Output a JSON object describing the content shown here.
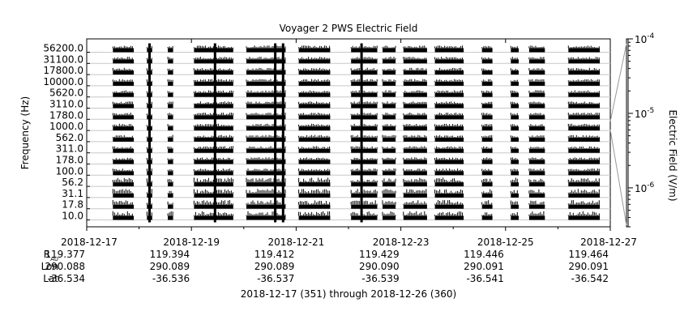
{
  "chart_data": {
    "type": "heatmap",
    "title": "Voyager 2 PWS Electric Field",
    "ylabel": "Frequency (Hz)",
    "colorbar_label": "Electric Field (V/m)",
    "colorbar_ticks": [
      {
        "value": 0.0001,
        "base": "10",
        "exp": "-4"
      },
      {
        "value": 1e-05,
        "base": "10",
        "exp": "-5"
      },
      {
        "value": 1e-06,
        "base": "10",
        "exp": "-6"
      }
    ],
    "colorbar_range": [
      3e-07,
      0.0001
    ],
    "colorbar_scale": "log",
    "colormap": "grayscale",
    "frequency_channels": [
      "56200.0",
      "31100.0",
      "17800.0",
      "10000.0",
      "5620.0",
      "3110.0",
      "1780.0",
      "1000.0",
      "562.0",
      "311.0",
      "178.0",
      "100.0",
      "56.2",
      "31.1",
      "17.8",
      "10.0"
    ],
    "x_range": [
      "2018-12-17",
      "2018-12-27"
    ],
    "x_ticks": [
      "2018-12-17",
      "2018-12-19",
      "2018-12-21",
      "2018-12-23",
      "2018-12-25",
      "2018-12-27"
    ],
    "x_minor_ticks": [
      "2018-12-18",
      "2018-12-20",
      "2018-12-22",
      "2018-12-24",
      "2018-12-26"
    ],
    "observation_windows": [
      {
        "start_day": 0.5,
        "end_day": 0.9
      },
      {
        "start_day": 1.15,
        "end_day": 1.25
      },
      {
        "start_day": 1.55,
        "end_day": 1.65
      },
      {
        "start_day": 2.05,
        "end_day": 2.8
      },
      {
        "start_day": 3.05,
        "end_day": 3.8
      },
      {
        "start_day": 4.05,
        "end_day": 4.65
      },
      {
        "start_day": 5.05,
        "end_day": 5.55
      },
      {
        "start_day": 5.65,
        "end_day": 5.9
      },
      {
        "start_day": 6.05,
        "end_day": 6.5
      },
      {
        "start_day": 6.65,
        "end_day": 7.2
      },
      {
        "start_day": 7.55,
        "end_day": 7.75
      },
      {
        "start_day": 8.1,
        "end_day": 8.25
      },
      {
        "start_day": 8.45,
        "end_day": 8.75
      },
      {
        "start_day": 9.2,
        "end_day": 9.8
      }
    ],
    "bursts": [
      {
        "day": 1.2,
        "fmin_idx": 0,
        "fmax_idx": 15
      },
      {
        "day": 2.45,
        "fmin_idx": 0,
        "fmax_idx": 15
      },
      {
        "day": 3.6,
        "fmin_idx": 0,
        "fmax_idx": 15
      },
      {
        "day": 3.75,
        "fmin_idx": 0,
        "fmax_idx": 15
      },
      {
        "day": 5.25,
        "fmin_idx": 0,
        "fmax_idx": 15
      }
    ],
    "row_labels": {
      "r": "R",
      "r_sub": "AU",
      "lon": "Lon",
      "lat": "Lat"
    },
    "ephemeris": [
      {
        "date": "2018-12-17",
        "r": "119.377",
        "lon": "290.088",
        "lat": "-36.534"
      },
      {
        "date": "2018-12-19",
        "r": "119.394",
        "lon": "290.089",
        "lat": "-36.536"
      },
      {
        "date": "2018-12-21",
        "r": "119.412",
        "lon": "290.089",
        "lat": "-36.537"
      },
      {
        "date": "2018-12-23",
        "r": "119.429",
        "lon": "290.090",
        "lat": "-36.539"
      },
      {
        "date": "2018-12-25",
        "r": "119.446",
        "lon": "290.091",
        "lat": "-36.541"
      },
      {
        "date": "2018-12-27",
        "r": "119.464",
        "lon": "290.091",
        "lat": "-36.542"
      }
    ],
    "date_range_caption": "2018-12-17 (351) through 2018-12-26 (360)"
  }
}
